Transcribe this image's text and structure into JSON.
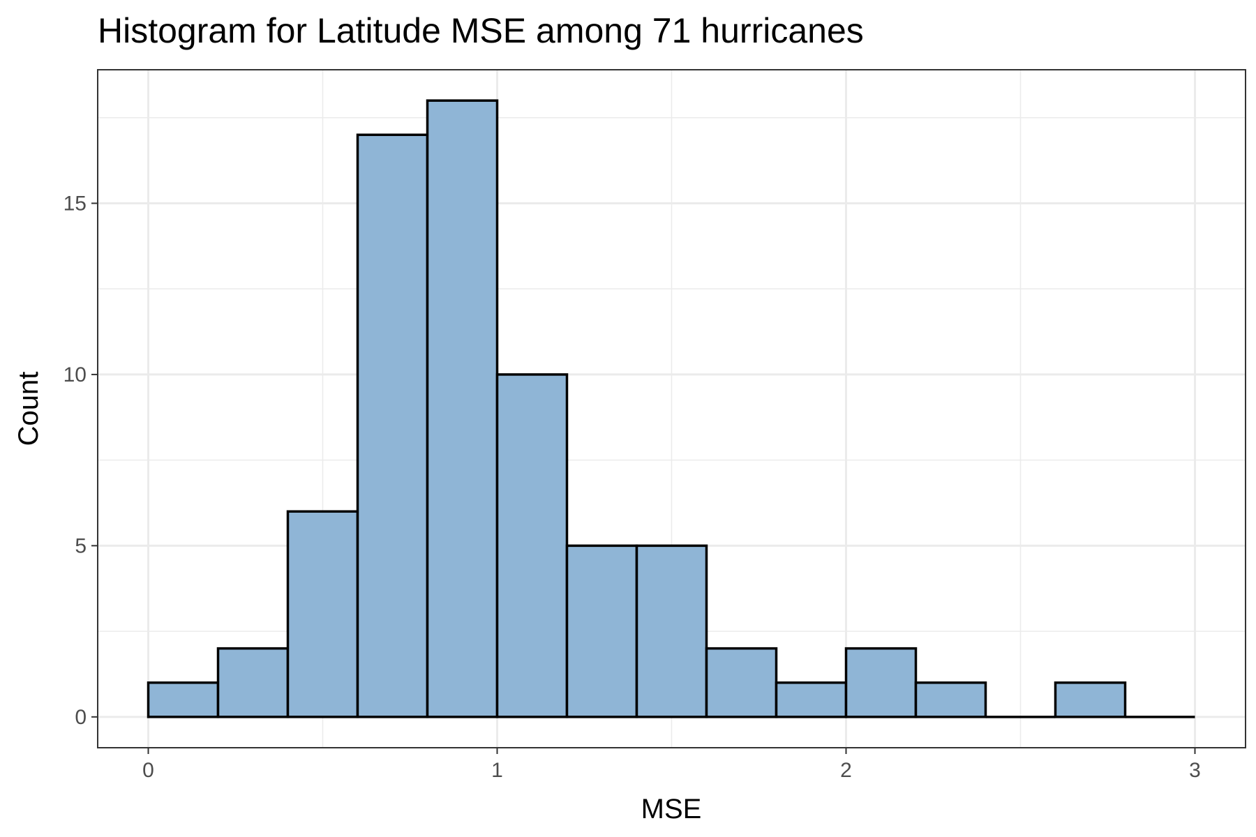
{
  "chart_data": {
    "type": "bar",
    "title": "Histogram for Latitude MSE among 71 hurricanes",
    "xlabel": "MSE",
    "ylabel": "Count",
    "bin_width": 0.2,
    "bin_edges": [
      0,
      0.2,
      0.4,
      0.6,
      0.8,
      1.0,
      1.2,
      1.4,
      1.6,
      1.8,
      2.0,
      2.2,
      2.4,
      2.6,
      2.8,
      3.0
    ],
    "values": [
      1,
      2,
      6,
      17,
      18,
      10,
      5,
      5,
      2,
      1,
      2,
      1,
      0,
      1,
      0
    ],
    "xlim": [
      -0.145,
      3.145
    ],
    "ylim": [
      -0.9,
      18.9
    ],
    "x_ticks": [
      0,
      1,
      2,
      3
    ],
    "x_tick_labels": [
      "0",
      "1",
      "2",
      "3"
    ],
    "y_ticks": [
      0,
      5,
      10,
      15
    ],
    "y_tick_labels": [
      "0",
      "5",
      "10",
      "15"
    ],
    "grid": true,
    "legend": "none",
    "fill_color": "#8fb5d6",
    "edge_color": "#000000",
    "theme": "bw"
  }
}
